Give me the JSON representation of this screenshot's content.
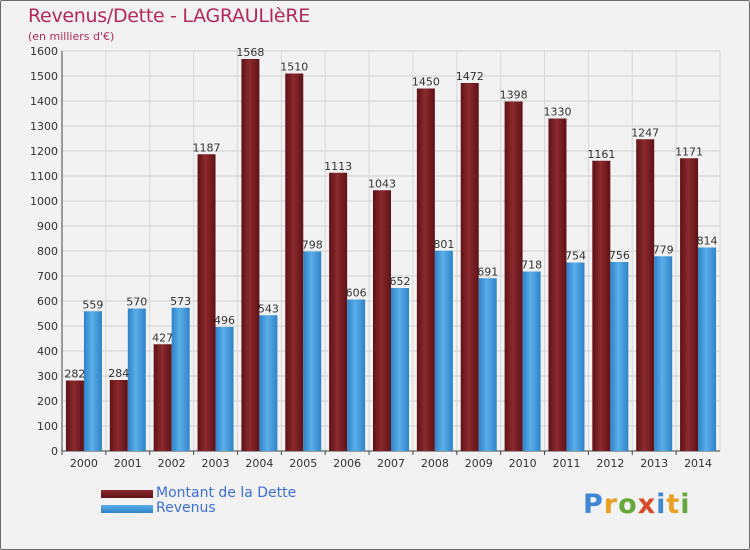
{
  "header": {
    "title": "Revenus/Dette - LAGRAULIèRE",
    "subtitle": "(en milliers d'€)"
  },
  "legend": {
    "items": [
      {
        "label": "Montant de la Dette",
        "color": "#7a1e22"
      },
      {
        "label": "Revenus",
        "color": "#3f98dc"
      }
    ]
  },
  "logo": {
    "text": "Proxiti",
    "letters": [
      "P",
      "r",
      "o",
      "x",
      "i",
      "t",
      "i"
    ],
    "colors": [
      "#3e86d6",
      "#e8a020",
      "#66a83a",
      "#d94a2a",
      "#3e86d6",
      "#e8a020",
      "#66a83a"
    ]
  },
  "chart_data": {
    "type": "bar",
    "title": "Revenus/Dette - LAGRAULIèRE",
    "subtitle": "(en milliers d'€)",
    "categories": [
      "2000",
      "2001",
      "2002",
      "2003",
      "2004",
      "2005",
      "2006",
      "2007",
      "2008",
      "2009",
      "2010",
      "2011",
      "2012",
      "2013",
      "2014"
    ],
    "series": [
      {
        "name": "Montant de la Dette",
        "color": "#7a1e22",
        "values": [
          282,
          284,
          427,
          1187,
          1568,
          1510,
          1113,
          1043,
          1450,
          1472,
          1398,
          1330,
          1161,
          1247,
          1171
        ]
      },
      {
        "name": "Revenus",
        "color": "#3f98dc",
        "values": [
          559,
          570,
          573,
          496,
          543,
          798,
          606,
          652,
          801,
          691,
          718,
          754,
          756,
          779,
          814
        ]
      }
    ],
    "ylim": [
      0,
      1600
    ],
    "yticks": [
      0,
      100,
      200,
      300,
      400,
      500,
      600,
      700,
      800,
      900,
      1000,
      1100,
      1200,
      1300,
      1400,
      1500,
      1600
    ],
    "grid": true,
    "legend_position": "bottom-left"
  }
}
